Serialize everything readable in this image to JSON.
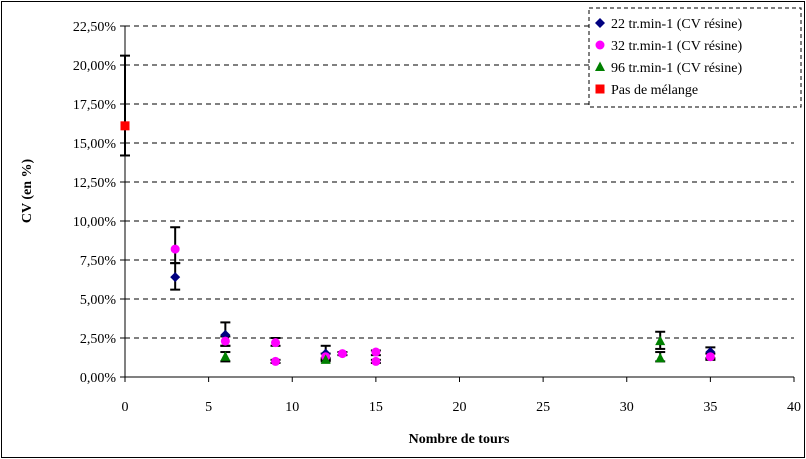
{
  "chart_data": {
    "type": "scatter",
    "xlabel": "Nombre de tours",
    "ylabel": "CV (en %)",
    "xlim": [
      0,
      40
    ],
    "ylim": [
      0,
      22.5
    ],
    "x_ticks": [
      "0",
      "5",
      "10",
      "15",
      "20",
      "25",
      "30",
      "35",
      "40"
    ],
    "y_ticks": [
      "0,00%",
      "2,50%",
      "5,00%",
      "7,50%",
      "10,00%",
      "12,50%",
      "15,00%",
      "17,50%",
      "20,00%",
      "22,50%"
    ],
    "grid": "horizontal-dashed",
    "legend_position": "top-right",
    "series": [
      {
        "name": "22 tr.min-1 (CV résine)",
        "marker": "diamond",
        "color": "#000080",
        "points": [
          {
            "x": 3,
            "y": 6.4,
            "err_low": 5.6,
            "err_high": 7.3
          },
          {
            "x": 6,
            "y": 2.7,
            "err_low": 2.0,
            "err_high": 3.5
          },
          {
            "x": 12,
            "y": 1.5,
            "err_low": 1.1,
            "err_high": 2.0
          },
          {
            "x": 35,
            "y": 1.6,
            "err_low": 1.2,
            "err_high": 1.9
          }
        ]
      },
      {
        "name": "32 tr.min-1 (CV résine)",
        "marker": "circle",
        "color": "#ff00ff",
        "points": [
          {
            "x": 3,
            "y": 8.2,
            "err_low": 7.3,
            "err_high": 9.6
          },
          {
            "x": 6,
            "y": 2.3,
            "err_low": 2.0,
            "err_high": 2.6
          },
          {
            "x": 9,
            "y": 1.0,
            "err_low": 0.9,
            "err_high": 1.1
          },
          {
            "x": 9,
            "y": 2.2,
            "err_low": 2.0,
            "err_high": 2.5
          },
          {
            "x": 12,
            "y": 1.3,
            "err_low": 1.1,
            "err_high": 1.5
          },
          {
            "x": 13,
            "y": 1.5,
            "err_low": 1.4,
            "err_high": 1.6
          },
          {
            "x": 15,
            "y": 1.0,
            "err_low": 0.9,
            "err_high": 1.1
          },
          {
            "x": 15,
            "y": 1.6,
            "err_low": 1.4,
            "err_high": 1.7
          },
          {
            "x": 35,
            "y": 1.3,
            "err_low": 1.1,
            "err_high": 1.5
          }
        ]
      },
      {
        "name": "96 tr.min-1 (CV résine)",
        "marker": "triangle",
        "color": "#008000",
        "points": [
          {
            "x": 6,
            "y": 1.3,
            "err_low": 1.0,
            "err_high": 1.6
          },
          {
            "x": 12,
            "y": 1.1,
            "err_low": 1.0,
            "err_high": 1.2
          },
          {
            "x": 32,
            "y": 2.3,
            "err_low": 1.8,
            "err_high": 2.9
          },
          {
            "x": 32,
            "y": 1.2,
            "err_low": 1.0,
            "err_high": 1.6
          }
        ]
      },
      {
        "name": "Pas de mélange",
        "marker": "square",
        "color": "#ff0000",
        "points": [
          {
            "x": 0,
            "y": 16.1,
            "err_low": 14.2,
            "err_high": 20.6
          }
        ]
      }
    ]
  }
}
